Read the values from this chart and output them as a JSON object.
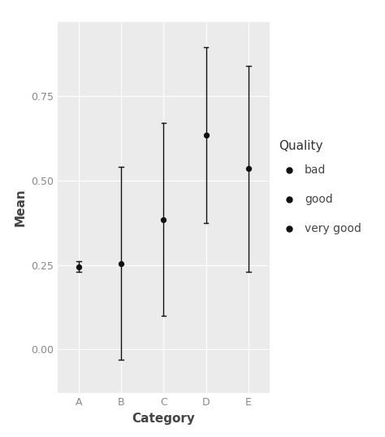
{
  "categories": [
    "A",
    "B",
    "C",
    "D",
    "E"
  ],
  "means": [
    0.245,
    0.255,
    0.385,
    0.635,
    0.535
  ],
  "errors": [
    0.015,
    0.285,
    0.285,
    0.26,
    0.305
  ],
  "quality_labels": [
    "bad",
    "good",
    "very good"
  ],
  "dot_color": "#111111",
  "line_color": "#111111",
  "xlabel": "Category",
  "ylabel": "Mean",
  "ylim": [
    -0.13,
    0.97
  ],
  "yticks": [
    0.0,
    0.25,
    0.5,
    0.75
  ],
  "ytick_labels": [
    "0.00",
    "0.25",
    "0.50",
    "0.75"
  ],
  "bg_color": "#EBEBEB",
  "grid_color": "#ffffff",
  "legend_title": "Quality",
  "legend_bg": "#E8E8E8",
  "legend_title_fontsize": 11,
  "legend_fontsize": 10,
  "axis_label_fontsize": 11,
  "tick_fontsize": 9,
  "tick_color": "#888888"
}
